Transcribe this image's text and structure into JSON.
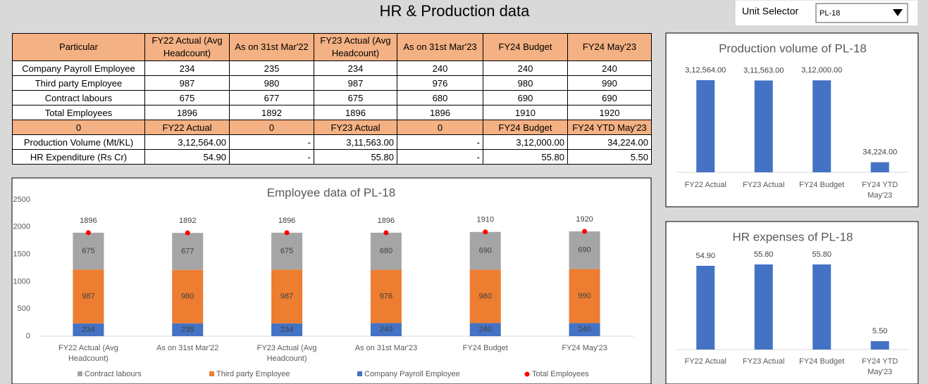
{
  "header": {
    "title": "HR & Production data",
    "unit_selector_label": "Unit Selector",
    "unit_selector_value": "PL-18"
  },
  "table": {
    "header": [
      "Particular",
      "FY22 Actual (Avg Headcount)",
      "As on 31st Mar'22",
      "FY23 Actual (Avg Headcount)",
      "As on 31st Mar'23",
      "FY24 Budget",
      "FY24 May'23"
    ],
    "rows": [
      [
        "Company Payroll Employee",
        "234",
        "235",
        "234",
        "240",
        "240",
        "240"
      ],
      [
        "Third party Employee",
        "987",
        "980",
        "987",
        "976",
        "980",
        "990"
      ],
      [
        "Contract labours",
        "675",
        "677",
        "675",
        "680",
        "690",
        "690"
      ],
      [
        "Total Employees",
        "1896",
        "1892",
        "1896",
        "1896",
        "1910",
        "1920"
      ],
      [
        "0",
        "FY22 Actual",
        "0",
        "FY23 Actual",
        "0",
        "FY24 Budget",
        "FY24 YTD May'23"
      ],
      [
        "Production Volume (Mt/KL)",
        "3,12,564.00",
        "-",
        "3,11,563.00",
        "-",
        "3,12,000.00",
        "34,224.00"
      ],
      [
        "HR Expenditure (Rs Cr)",
        "54.90",
        "-",
        "55.80",
        "-",
        "55.80",
        "5.50"
      ]
    ]
  },
  "chart_data": [
    {
      "type": "bar",
      "stacked": true,
      "title": "Employee data of PL-18",
      "categories": [
        "FY22 Actual (Avg Headcount)",
        "As on 31st Mar'22",
        "FY23 Actual (Avg Headcount)",
        "As on 31st Mar'23",
        "FY24 Budget",
        "FY24 May'23"
      ],
      "series": [
        {
          "name": "Contract labours",
          "color": "#a5a5a5",
          "values": [
            675,
            677,
            675,
            680,
            690,
            690
          ]
        },
        {
          "name": "Third party Employee",
          "color": "#ed7d31",
          "values": [
            987,
            980,
            987,
            976,
            980,
            990
          ]
        },
        {
          "name": "Company Payroll Employee",
          "color": "#4472c4",
          "values": [
            234,
            235,
            234,
            240,
            240,
            240
          ]
        },
        {
          "name": "Total Employees",
          "color": "#ff0000",
          "type": "scatter",
          "values": [
            1896,
            1892,
            1896,
            1896,
            1910,
            1920
          ]
        }
      ],
      "ylim": [
        0,
        2500
      ],
      "yticks": [
        0,
        500,
        1000,
        1500,
        2000,
        2500
      ],
      "legend": "bottom"
    },
    {
      "type": "bar",
      "title": "Production volume of PL-18",
      "categories": [
        "FY22 Actual",
        "FY23 Actual",
        "FY24 Budget",
        "FY24 YTD May'23"
      ],
      "values": [
        312564,
        311563,
        312000,
        34224
      ],
      "value_labels": [
        "3,12,564.00",
        "3,11,563.00",
        "3,12,000.00",
        "34,224.00"
      ],
      "color": "#4472c4"
    },
    {
      "type": "bar",
      "title": "HR expenses of PL-18",
      "categories": [
        "FY22 Actual",
        "FY23 Actual",
        "FY24 Budget",
        "FY24 YTD May'23"
      ],
      "values": [
        54.9,
        55.8,
        55.8,
        5.5
      ],
      "value_labels": [
        "54.90",
        "55.80",
        "55.80",
        "5.50"
      ],
      "color": "#4472c4"
    }
  ]
}
